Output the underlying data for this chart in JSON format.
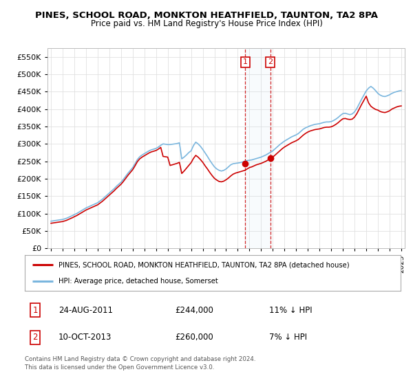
{
  "title": "PINES, SCHOOL ROAD, MONKTON HEATHFIELD, TAUNTON, TA2 8PA",
  "subtitle": "Price paid vs. HM Land Registry's House Price Index (HPI)",
  "legend_line1": "PINES, SCHOOL ROAD, MONKTON HEATHFIELD, TAUNTON, TA2 8PA (detached house)",
  "legend_line2": "HPI: Average price, detached house, Somerset",
  "sale1_date": "24-AUG-2011",
  "sale1_price": "£244,000",
  "sale1_hpi": "11% ↓ HPI",
  "sale2_date": "10-OCT-2013",
  "sale2_price": "£260,000",
  "sale2_hpi": "7% ↓ HPI",
  "footer": "Contains HM Land Registry data © Crown copyright and database right 2024.\nThis data is licensed under the Open Government Licence v3.0.",
  "hpi_color": "#7ab6de",
  "price_color": "#cc0000",
  "ylim": [
    0,
    575000
  ],
  "yticks": [
    0,
    50000,
    100000,
    150000,
    200000,
    250000,
    300000,
    350000,
    400000,
    450000,
    500000,
    550000
  ],
  "sale1_x": 2011.65,
  "sale1_y": 244000,
  "sale2_x": 2013.78,
  "sale2_y": 260000,
  "vline1_x": 2011.65,
  "vline2_x": 2013.78,
  "shade_xmin": 2011.65,
  "shade_xmax": 2013.78,
  "xmin": 1994.7,
  "xmax": 2025.3,
  "hpi_x": [
    1995.0,
    1995.1,
    1995.2,
    1995.3,
    1995.4,
    1995.5,
    1995.6,
    1995.7,
    1995.8,
    1995.9,
    1996.0,
    1996.1,
    1996.2,
    1996.3,
    1996.4,
    1996.5,
    1996.6,
    1996.7,
    1996.8,
    1996.9,
    1997.0,
    1997.2,
    1997.4,
    1997.6,
    1997.8,
    1998.0,
    1998.2,
    1998.4,
    1998.6,
    1998.8,
    1999.0,
    1999.2,
    1999.4,
    1999.6,
    1999.8,
    2000.0,
    2000.2,
    2000.4,
    2000.6,
    2000.8,
    2001.0,
    2001.2,
    2001.4,
    2001.6,
    2001.8,
    2002.0,
    2002.2,
    2002.4,
    2002.6,
    2002.8,
    2003.0,
    2003.2,
    2003.4,
    2003.6,
    2003.8,
    2004.0,
    2004.2,
    2004.4,
    2004.6,
    2004.8,
    2005.0,
    2005.2,
    2005.4,
    2005.6,
    2005.8,
    2006.0,
    2006.2,
    2006.4,
    2006.6,
    2006.8,
    2007.0,
    2007.2,
    2007.4,
    2007.6,
    2007.8,
    2008.0,
    2008.2,
    2008.4,
    2008.6,
    2008.8,
    2009.0,
    2009.2,
    2009.4,
    2009.6,
    2009.8,
    2010.0,
    2010.2,
    2010.4,
    2010.6,
    2010.8,
    2011.0,
    2011.2,
    2011.4,
    2011.6,
    2011.8,
    2012.0,
    2012.2,
    2012.4,
    2012.6,
    2012.8,
    2013.0,
    2013.2,
    2013.4,
    2013.6,
    2013.8,
    2014.0,
    2014.2,
    2014.4,
    2014.6,
    2014.8,
    2015.0,
    2015.2,
    2015.4,
    2015.6,
    2015.8,
    2016.0,
    2016.2,
    2016.4,
    2016.6,
    2016.8,
    2017.0,
    2017.2,
    2017.4,
    2017.6,
    2017.8,
    2018.0,
    2018.2,
    2018.4,
    2018.6,
    2018.8,
    2019.0,
    2019.2,
    2019.4,
    2019.6,
    2019.8,
    2020.0,
    2020.2,
    2020.4,
    2020.6,
    2020.8,
    2021.0,
    2021.2,
    2021.4,
    2021.6,
    2021.8,
    2022.0,
    2022.2,
    2022.4,
    2022.6,
    2022.8,
    2023.0,
    2023.2,
    2023.4,
    2023.6,
    2023.8,
    2024.0,
    2024.2,
    2024.4,
    2024.6,
    2024.8,
    2025.0
  ],
  "hpi_y": [
    78000,
    78500,
    79000,
    79500,
    80000,
    80500,
    81000,
    81500,
    82000,
    82500,
    83000,
    84000,
    85000,
    86000,
    87500,
    89000,
    90500,
    92000,
    93500,
    95000,
    97000,
    100000,
    104000,
    108000,
    112000,
    116000,
    119000,
    122000,
    125000,
    128000,
    131000,
    136000,
    141000,
    147000,
    153000,
    159000,
    165000,
    171000,
    178000,
    184000,
    190000,
    198000,
    207000,
    216000,
    224000,
    232000,
    243000,
    255000,
    263000,
    268000,
    272000,
    276000,
    280000,
    283000,
    285000,
    287000,
    291000,
    296000,
    300000,
    299000,
    298000,
    298000,
    299000,
    300000,
    301000,
    303000,
    257000,
    262000,
    268000,
    275000,
    280000,
    295000,
    305000,
    300000,
    293000,
    284000,
    274000,
    264000,
    253000,
    243000,
    234000,
    228000,
    224000,
    222000,
    224000,
    228000,
    234000,
    240000,
    243000,
    244000,
    245000,
    246000,
    248000,
    250000,
    252000,
    253000,
    254000,
    256000,
    258000,
    260000,
    262000,
    265000,
    268000,
    272000,
    276000,
    280000,
    286000,
    292000,
    298000,
    303000,
    308000,
    312000,
    316000,
    320000,
    323000,
    326000,
    330000,
    336000,
    342000,
    346000,
    349000,
    352000,
    354000,
    356000,
    357000,
    358000,
    360000,
    362000,
    363000,
    363000,
    364000,
    367000,
    371000,
    376000,
    382000,
    387000,
    388000,
    386000,
    384000,
    386000,
    392000,
    402000,
    415000,
    428000,
    440000,
    452000,
    460000,
    465000,
    460000,
    453000,
    445000,
    440000,
    437000,
    436000,
    438000,
    441000,
    445000,
    448000,
    450000,
    452000,
    453000
  ],
  "price_x": [
    1995.0,
    1995.1,
    1995.2,
    1995.3,
    1995.4,
    1995.5,
    1995.6,
    1995.7,
    1995.8,
    1995.9,
    1996.0,
    1996.1,
    1996.2,
    1996.3,
    1996.4,
    1996.5,
    1996.6,
    1996.7,
    1996.8,
    1996.9,
    1997.0,
    1997.2,
    1997.4,
    1997.6,
    1997.8,
    1998.0,
    1998.2,
    1998.4,
    1998.6,
    1998.8,
    1999.0,
    1999.2,
    1999.4,
    1999.6,
    1999.8,
    2000.0,
    2000.2,
    2000.4,
    2000.6,
    2000.8,
    2001.0,
    2001.2,
    2001.4,
    2001.6,
    2001.8,
    2002.0,
    2002.2,
    2002.4,
    2002.6,
    2002.8,
    2003.0,
    2003.2,
    2003.4,
    2003.6,
    2003.8,
    2004.0,
    2004.2,
    2004.4,
    2004.6,
    2004.8,
    2005.0,
    2005.2,
    2005.4,
    2005.6,
    2005.8,
    2006.0,
    2006.2,
    2006.4,
    2006.6,
    2006.8,
    2007.0,
    2007.2,
    2007.4,
    2007.6,
    2007.8,
    2008.0,
    2008.2,
    2008.4,
    2008.6,
    2008.8,
    2009.0,
    2009.2,
    2009.4,
    2009.6,
    2009.8,
    2010.0,
    2010.2,
    2010.4,
    2010.6,
    2010.8,
    2011.0,
    2011.2,
    2011.4,
    2011.6,
    2011.8,
    2012.0,
    2012.2,
    2012.4,
    2012.6,
    2012.8,
    2013.0,
    2013.2,
    2013.4,
    2013.6,
    2013.8,
    2014.0,
    2014.2,
    2014.4,
    2014.6,
    2014.8,
    2015.0,
    2015.2,
    2015.4,
    2015.6,
    2015.8,
    2016.0,
    2016.2,
    2016.4,
    2016.6,
    2016.8,
    2017.0,
    2017.2,
    2017.4,
    2017.6,
    2017.8,
    2018.0,
    2018.2,
    2018.4,
    2018.6,
    2018.8,
    2019.0,
    2019.2,
    2019.4,
    2019.6,
    2019.8,
    2020.0,
    2020.2,
    2020.4,
    2020.6,
    2020.8,
    2021.0,
    2021.2,
    2021.4,
    2021.6,
    2021.8,
    2022.0,
    2022.2,
    2022.4,
    2022.6,
    2022.8,
    2023.0,
    2023.2,
    2023.4,
    2023.6,
    2023.8,
    2024.0,
    2024.2,
    2024.4,
    2024.6,
    2024.8,
    2025.0
  ],
  "price_y": [
    72000,
    72500,
    73000,
    73500,
    74000,
    74500,
    75000,
    75500,
    76000,
    76500,
    77000,
    78000,
    79000,
    80000,
    81500,
    83000,
    84500,
    86000,
    87500,
    89000,
    91000,
    94000,
    98000,
    102000,
    106000,
    110000,
    113000,
    116000,
    119000,
    122000,
    125000,
    130000,
    135000,
    141000,
    147000,
    153000,
    159000,
    165000,
    172000,
    178000,
    184000,
    192000,
    201000,
    210000,
    218000,
    226000,
    237000,
    249000,
    257000,
    262000,
    266000,
    270000,
    274000,
    277000,
    279000,
    281000,
    285000,
    290000,
    264000,
    263000,
    262000,
    238000,
    240000,
    242000,
    244000,
    247000,
    215000,
    222000,
    230000,
    238000,
    246000,
    258000,
    267000,
    262000,
    255000,
    247000,
    237000,
    228000,
    218000,
    209000,
    201000,
    196000,
    192000,
    191000,
    193000,
    197000,
    202000,
    208000,
    213000,
    216000,
    218000,
    220000,
    222000,
    224000,
    228000,
    232000,
    234000,
    237000,
    240000,
    242000,
    244000,
    247000,
    250000,
    254000,
    258000,
    262000,
    268000,
    274000,
    280000,
    286000,
    291000,
    295000,
    299000,
    303000,
    306000,
    309000,
    313000,
    319000,
    325000,
    330000,
    334000,
    337000,
    339000,
    341000,
    342000,
    343000,
    345000,
    347000,
    348000,
    348000,
    349000,
    352000,
    356000,
    361000,
    367000,
    372000,
    373000,
    371000,
    370000,
    371000,
    377000,
    387000,
    400000,
    413000,
    425000,
    437000,
    418000,
    408000,
    403000,
    399000,
    397000,
    393000,
    391000,
    390000,
    392000,
    395000,
    400000,
    403000,
    406000,
    408000,
    409000
  ]
}
